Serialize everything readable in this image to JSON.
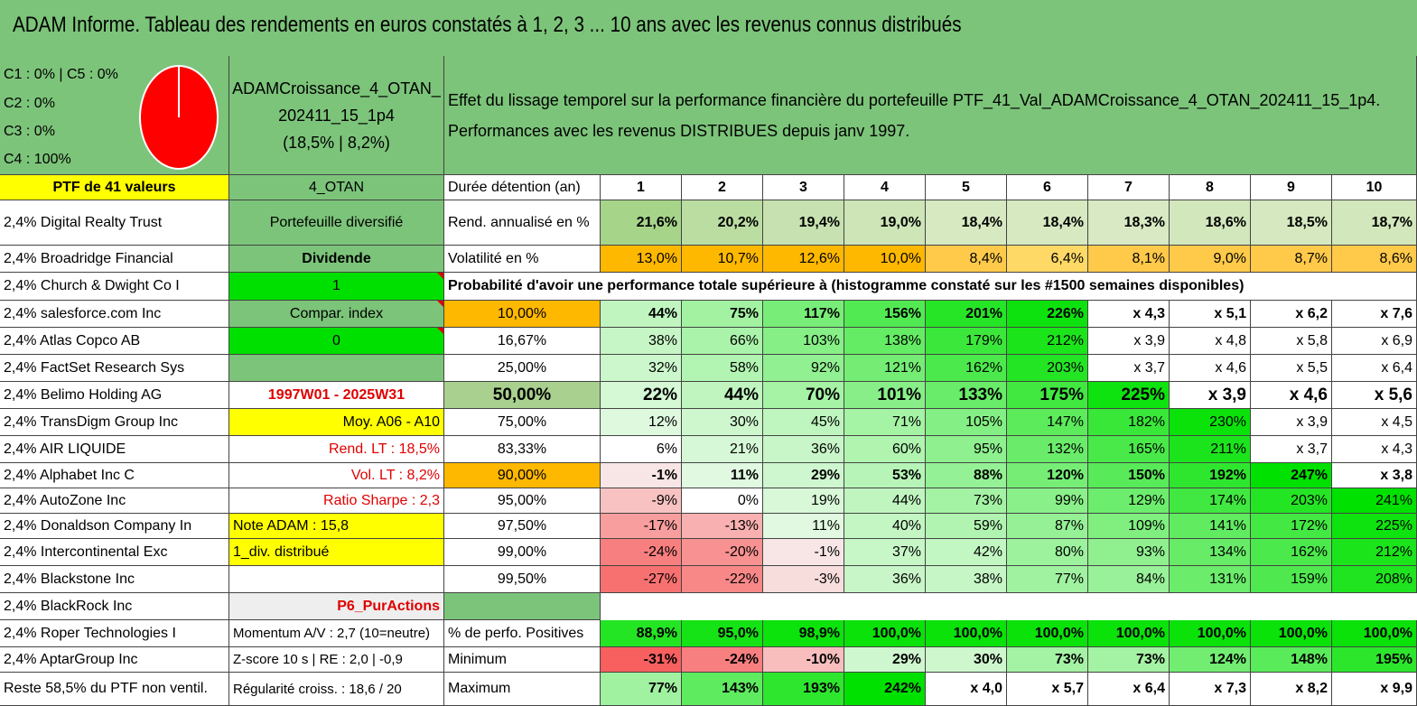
{
  "title": "ADAM Informe. Tableau des rendements en euros constatés à 1, 2, 3 ... 10 ans avec les revenus connus distribués",
  "legend": [
    "C1 : 0% | C5 : 0%",
    "C2 : 0%",
    "C3 : 0%",
    "C4 : 100%"
  ],
  "pie": {
    "C1": 0,
    "C2": 0,
    "C3": 0,
    "C4": 100,
    "C5": 0,
    "color": "#ff0000"
  },
  "portfolio": {
    "name1": "ADAMCroissance_4_OTAN_",
    "name2": "202411_15_1p4",
    "name3": "(18,5% | 8,2%)"
  },
  "effect": {
    "line1": "Effet du lissage temporel sur la performance financière du portefeuille PTF_41_Val_ADAMCroissance_4_OTAN_202411_15_1p4.",
    "line2": "Performances avec les revenus DISTRIBUES depuis janv 1997."
  },
  "ptf_label": "PTF de 41 valeurs",
  "otan_label": "4_OTAN",
  "duree_label": "Durée détention (an)",
  "years": [
    "1",
    "2",
    "3",
    "4",
    "5",
    "6",
    "7",
    "8",
    "9",
    "10"
  ],
  "holdings": [
    "2,4% Digital Realty Trust",
    "2,4% Broadridge Financial",
    "2,4% Church & Dwight Co I",
    "2,4% salesforce.com Inc",
    "2,4% Atlas Copco AB",
    "2,4% FactSet Research Sys",
    "2,4% Belimo Holding AG",
    "2,4% TransDigm Group Inc",
    "2,4% AIR LIQUIDE",
    "2,4% Alphabet Inc C",
    "2,4% AutoZone Inc",
    "2,4% Donaldson Company In",
    "2,4% Intercontinental Exc",
    "2,4% Blackstone Inc",
    "2,4% BlackRock Inc",
    "2,4% Roper Technologies I",
    "2,4% AptarGroup Inc",
    "Reste 58,5% du PTF non ventil."
  ],
  "info": [
    "Portefeuille diversifié",
    "Dividende",
    "1",
    "Compar. index",
    "0",
    "",
    "1997W01 - 2025W31",
    "Moy. A06 - A10",
    "Rend. LT : 18,5%",
    "Vol. LT : 8,2%",
    "Ratio Sharpe : 2,3",
    "Note ADAM : 15,8",
    "1_div. distribué",
    "",
    "P6_PurActions",
    "Momentum A/V : 2,7 (10=neutre)",
    "Z-score 10 s | RE : 2,0 | -0,9",
    "Régularité croiss. : 18,6 / 20"
  ],
  "rend_label": "Rend. annualisé en %",
  "rend": [
    "21,6%",
    "20,2%",
    "19,4%",
    "19,0%",
    "18,4%",
    "18,4%",
    "18,3%",
    "18,6%",
    "18,5%",
    "18,7%"
  ],
  "vol_label": "Volatilité en %",
  "vol": [
    "13,0%",
    "10,7%",
    "12,6%",
    "10,0%",
    "8,4%",
    "6,4%",
    "8,1%",
    "9,0%",
    "8,7%",
    "8,6%"
  ],
  "prob_label": "Probabilité d'avoir une performance totale supérieure à (histogramme constaté sur les #1500 semaines disponibles)",
  "prob": [
    {
      "p": "10,00%",
      "v": [
        "44%",
        "75%",
        "117%",
        "156%",
        "201%",
        "226%",
        "x 4,3",
        "x 5,1",
        "x 6,2",
        "x 7,6"
      ]
    },
    {
      "p": "16,67%",
      "v": [
        "38%",
        "66%",
        "103%",
        "138%",
        "179%",
        "212%",
        "x 3,9",
        "x 4,8",
        "x 5,8",
        "x 6,9"
      ]
    },
    {
      "p": "25,00%",
      "v": [
        "32%",
        "58%",
        "92%",
        "121%",
        "162%",
        "203%",
        "x 3,7",
        "x 4,6",
        "x 5,5",
        "x 6,4"
      ]
    },
    {
      "p": "50,00%",
      "v": [
        "22%",
        "44%",
        "70%",
        "101%",
        "133%",
        "175%",
        "225%",
        "x 3,9",
        "x 4,6",
        "x 5,6"
      ]
    },
    {
      "p": "75,00%",
      "v": [
        "12%",
        "30%",
        "45%",
        "71%",
        "105%",
        "147%",
        "182%",
        "230%",
        "x 3,9",
        "x 4,5"
      ]
    },
    {
      "p": "83,33%",
      "v": [
        "6%",
        "21%",
        "36%",
        "60%",
        "95%",
        "132%",
        "165%",
        "211%",
        "x 3,7",
        "x 4,3"
      ]
    },
    {
      "p": "90,00%",
      "v": [
        "-1%",
        "11%",
        "29%",
        "53%",
        "88%",
        "120%",
        "150%",
        "192%",
        "247%",
        "x 3,8"
      ]
    },
    {
      "p": "95,00%",
      "v": [
        "-9%",
        "0%",
        "19%",
        "44%",
        "73%",
        "99%",
        "129%",
        "174%",
        "203%",
        "241%"
      ]
    },
    {
      "p": "97,50%",
      "v": [
        "-17%",
        "-13%",
        "11%",
        "40%",
        "59%",
        "87%",
        "109%",
        "141%",
        "172%",
        "225%"
      ]
    },
    {
      "p": "99,00%",
      "v": [
        "-24%",
        "-20%",
        "-1%",
        "37%",
        "42%",
        "80%",
        "93%",
        "134%",
        "162%",
        "212%"
      ]
    },
    {
      "p": "99,50%",
      "v": [
        "-27%",
        "-22%",
        "-3%",
        "36%",
        "38%",
        "77%",
        "84%",
        "131%",
        "159%",
        "208%"
      ]
    }
  ],
  "pos_label": "% de perfo. Positives",
  "pos": [
    "88,9%",
    "95,0%",
    "98,9%",
    "100,0%",
    "100,0%",
    "100,0%",
    "100,0%",
    "100,0%",
    "100,0%",
    "100,0%"
  ],
  "min_label": "Minimum",
  "min": [
    "-31%",
    "-24%",
    "-10%",
    "29%",
    "30%",
    "73%",
    "73%",
    "124%",
    "148%",
    "195%"
  ],
  "max_label": "Maximum",
  "max": [
    "77%",
    "143%",
    "193%",
    "242%",
    "x 4,0",
    "x 5,7",
    "x 6,4",
    "x 7,3",
    "x 8,2",
    "x 9,9"
  ],
  "colors": {
    "header_green": "#7cc47a",
    "yellow": "#ffff00",
    "lime": "#00e000",
    "orange": "#ffb800",
    "red_text": "#e00000"
  }
}
